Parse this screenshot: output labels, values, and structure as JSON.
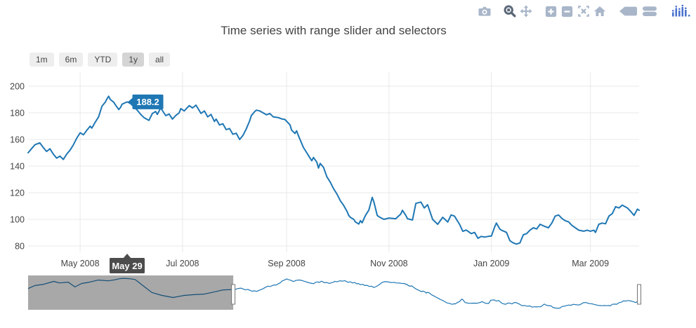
{
  "title": "Time series with range slider and selectors",
  "modebar": {
    "icons": [
      {
        "name": "camera-icon",
        "action": "download plot as png"
      },
      {
        "name": "zoom-icon",
        "action": "zoom",
        "active": true
      },
      {
        "name": "pan-icon",
        "action": "pan"
      },
      {
        "name": "zoom-in-icon",
        "action": "zoom in"
      },
      {
        "name": "zoom-out-icon",
        "action": "zoom out"
      },
      {
        "name": "autoscale-icon",
        "action": "autoscale"
      },
      {
        "name": "home-icon",
        "action": "reset axes"
      },
      {
        "name": "hover-closest-icon",
        "action": "show closest data on hover"
      },
      {
        "name": "hover-compare-icon",
        "action": "compare data on hover"
      },
      {
        "name": "plotly-logo-icon",
        "action": "produced with plotly"
      }
    ]
  },
  "range_selectors": {
    "buttons": [
      {
        "label": "1m",
        "active": false
      },
      {
        "label": "6m",
        "active": false
      },
      {
        "label": "YTD",
        "active": false
      },
      {
        "label": "1y",
        "active": true
      },
      {
        "label": "all",
        "active": false
      }
    ]
  },
  "hover": {
    "value_label": "188.2",
    "date_label": "May 29"
  },
  "colors": {
    "line": "#1f77b4",
    "grid": "#e9e9e9",
    "tick_text": "#444",
    "value_tooltip_bg": "#1f77b4",
    "date_tooltip_bg": "#4c4c4c",
    "slider_mask": "rgba(0,0,0,0.34)",
    "button_active": "#d4d4d4",
    "button_bg": "#eee"
  },
  "chart_data": {
    "type": "line",
    "title": "Time series with range slider and selectors",
    "xlabel": "",
    "ylabel": "",
    "grid": true,
    "legend": false,
    "y_ticks": [
      80,
      100,
      120,
      140,
      160,
      180,
      200
    ],
    "y_axis_anchor": {
      "value_low": 80,
      "value_high": 200
    },
    "x_ticks": [
      {
        "day": 31,
        "label": "May 2008"
      },
      {
        "day": 92,
        "label": "Jul 2008"
      },
      {
        "day": 154,
        "label": "Sep 2008"
      },
      {
        "day": 215,
        "label": "Nov 2008"
      },
      {
        "day": 276,
        "label": "Jan 2009"
      },
      {
        "day": 335,
        "label": "Mar 2009"
      }
    ],
    "visible_window_days": [
      0,
      364
    ],
    "hover_point": {
      "day": 59,
      "value": 188.2,
      "value_label": "188.2",
      "date_label": "May 29"
    },
    "series": [
      {
        "name": "main",
        "days": [
          0,
          2,
          4,
          7,
          9,
          11,
          13,
          15,
          17,
          19,
          21,
          23,
          25,
          27,
          29,
          31,
          33,
          35,
          37,
          38,
          40,
          42,
          43,
          44,
          46,
          47,
          48,
          49,
          51,
          52,
          54,
          55,
          56,
          59,
          61,
          63,
          65,
          67,
          69,
          71,
          72,
          74,
          76,
          77,
          79,
          82,
          84,
          86,
          88,
          90,
          91,
          93,
          96,
          98,
          100,
          103,
          105,
          107,
          109,
          111,
          112,
          114,
          116,
          118,
          120,
          122,
          124,
          126,
          128,
          130,
          132,
          133,
          135,
          136,
          138,
          140,
          142,
          144,
          146,
          149,
          151,
          153,
          156,
          157,
          159,
          160,
          161,
          162,
          164,
          166,
          167,
          169,
          170,
          172,
          173,
          174,
          176,
          178,
          180,
          182,
          184,
          186,
          188,
          190,
          191,
          192,
          194,
          195,
          197,
          198,
          199,
          201,
          203,
          205,
          206,
          208,
          209,
          212,
          215,
          219,
          222,
          223,
          225,
          226,
          229,
          231,
          234,
          236,
          238,
          241,
          244,
          247,
          250,
          252,
          254,
          257,
          259,
          261,
          264,
          266,
          268,
          270,
          272,
          274,
          276,
          278,
          279,
          281,
          282,
          285,
          287,
          289,
          291,
          293,
          295,
          297,
          299,
          301,
          303,
          305,
          308,
          310,
          312,
          314,
          316,
          318,
          320,
          322,
          324,
          326,
          328,
          331,
          333,
          335,
          337,
          338,
          340,
          342,
          344,
          346,
          348,
          350,
          352,
          354,
          357,
          359,
          361,
          363,
          364
        ],
        "values": [
          150,
          153,
          156,
          157.5,
          154,
          151,
          153,
          149,
          146,
          147.5,
          145,
          149,
          152,
          156,
          161,
          165,
          163.5,
          167,
          170,
          168.5,
          173,
          177,
          181,
          185,
          188,
          190.5,
          192.5,
          190,
          188,
          186,
          182.5,
          184,
          186.5,
          188.2,
          187,
          184.5,
          182,
          179,
          176.5,
          175,
          174.3,
          179.5,
          181,
          178.8,
          183.7,
          177.9,
          179.1,
          175.3,
          178,
          180,
          183.2,
          181.4,
          185.4,
          183.7,
          185.8,
          179.6,
          181.4,
          177,
          178.8,
          173.5,
          175.3,
          170.9,
          171.8,
          167.4,
          168.2,
          163.9,
          164.7,
          160,
          163,
          168,
          174,
          178,
          181,
          182,
          181.5,
          180,
          178.5,
          179.5,
          177,
          176.5,
          175.5,
          175,
          171,
          167,
          164.5,
          166.5,
          163,
          160,
          154,
          150,
          148,
          144,
          146.5,
          143,
          138.5,
          142,
          139,
          132,
          128,
          123,
          119,
          114,
          110.5,
          106,
          103,
          101.5,
          100,
          98,
          96.5,
          99,
          97.5,
          103,
          107,
          116.5,
          113,
          103,
          102,
          100,
          101,
          100.5,
          104,
          106.8,
          103,
          100.5,
          99.5,
          112,
          113,
          108.6,
          111,
          100,
          96.3,
          101.6,
          98,
          103.3,
          102.5,
          96.3,
          91,
          92,
          89.3,
          90.2,
          85.8,
          87.2,
          86.7,
          87.2,
          87.5,
          94.6,
          97.2,
          92.8,
          91.9,
          90.2,
          84,
          82.3,
          81.4,
          82.3,
          88.4,
          89.3,
          91.9,
          93.7,
          92.8,
          96.3,
          94.6,
          93.7,
          97.2,
          102.5,
          103.3,
          100.7,
          99,
          98.1,
          95.4,
          93.7,
          91.9,
          91.1,
          91.9,
          91.1,
          91.9,
          90.2,
          96.3,
          97.2,
          96.7,
          102.5,
          104.3,
          109.5,
          108.6,
          110.7,
          108.6,
          106,
          103,
          107.7,
          106.8
        ]
      }
    ],
    "rangeslider": {
      "shown": true,
      "masked_region": "before selected window",
      "pre_window_series": {
        "name": "history before visible window",
        "days": [
          -184,
          -178,
          -170,
          -161,
          -156,
          -148,
          -142,
          -136,
          -129,
          -121,
          -112,
          -106,
          -102,
          -98,
          -93,
          -88,
          -81,
          -73,
          -64,
          -54,
          -44,
          -35,
          -26,
          -17,
          -9,
          -1
        ],
        "values": [
          156,
          167,
          172,
          183,
          177,
          180,
          162,
          175,
          180,
          188,
          185,
          189,
          193,
          194.5,
          193,
          190,
          167,
          141,
          130,
          122,
          130,
          133,
          135,
          143,
          151,
          152
        ]
      }
    }
  }
}
